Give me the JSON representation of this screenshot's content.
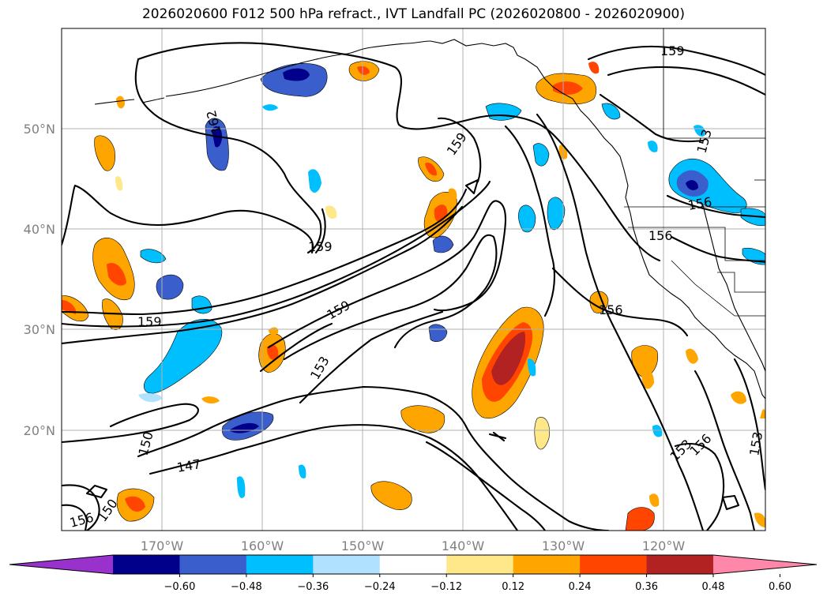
{
  "title": "2026020600 F012 500 hPa refract., IVT Landfall PC (2026020800 - 2026020900)",
  "lat_labels": [
    "50°N",
    "40°N",
    "30°N",
    "20°N"
  ],
  "lon_labels": [
    "170°W",
    "160°W",
    "150°W",
    "140°W",
    "130°W",
    "120°W"
  ],
  "colorbar": {
    "ticks": [
      "−0.60",
      "−0.48",
      "−0.36",
      "−0.24",
      "−0.12",
      "0.12",
      "0.24",
      "0.36",
      "0.48",
      "0.60"
    ],
    "colors": [
      "#9932cc",
      "#00008b",
      "#3a5fcd",
      "#00bfff",
      "#b0e2ff",
      "#ffffff",
      "#ffe88a",
      "#ffa500",
      "#ff4500",
      "#b22222",
      "#ff88aa"
    ]
  },
  "contour_labels": [
    "159",
    "159",
    "159",
    "159",
    "159",
    "153",
    "156",
    "156",
    "162",
    "153",
    "150",
    "147",
    "150",
    "156",
    "153",
    "156",
    "153",
    "156"
  ]
}
